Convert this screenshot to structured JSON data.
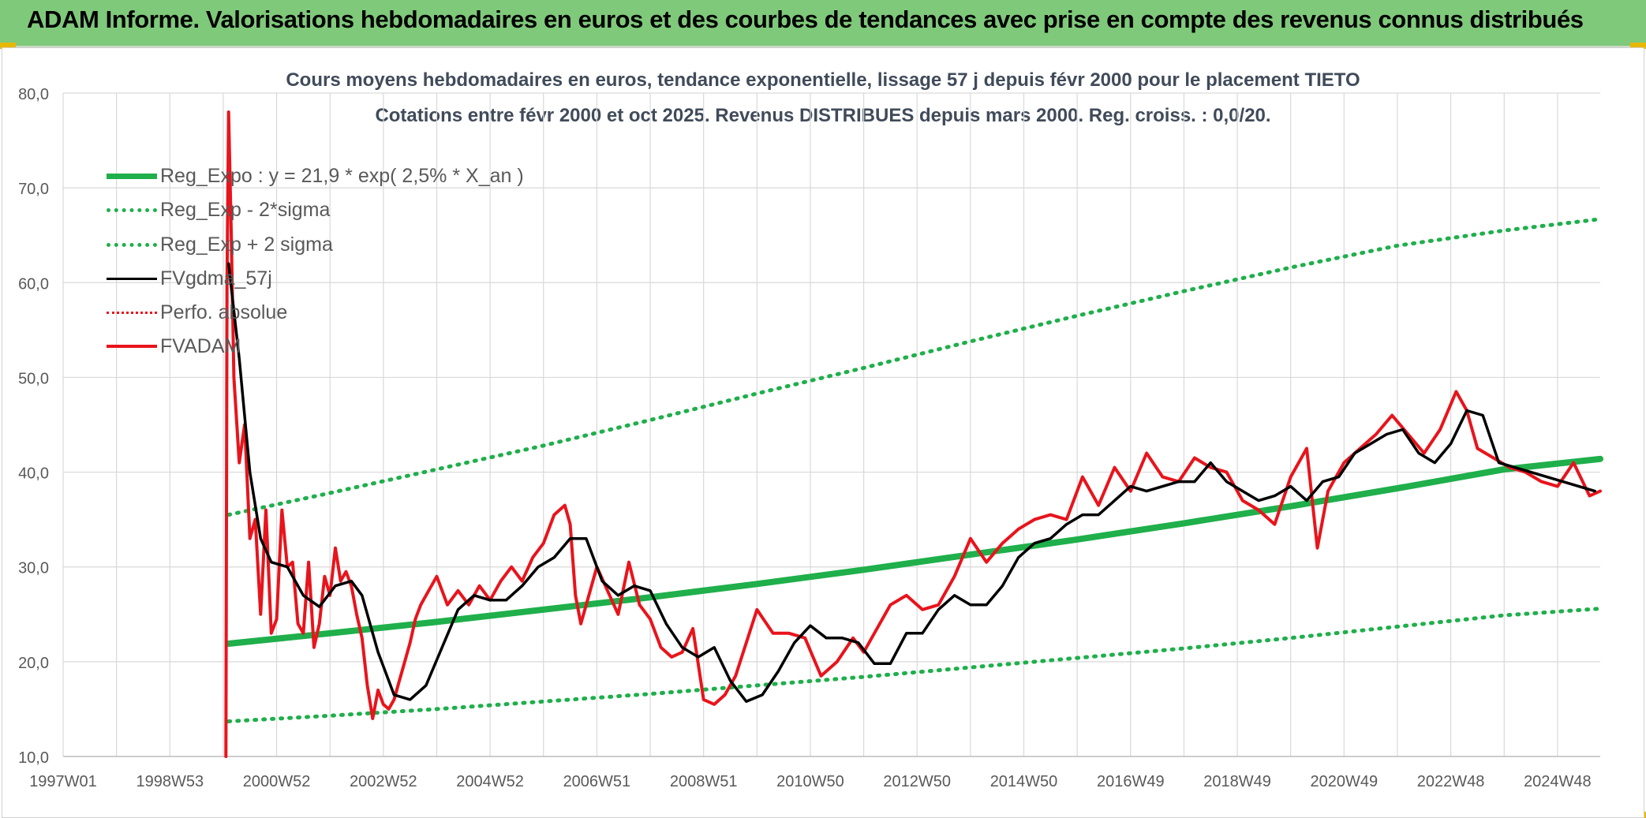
{
  "banner": {
    "title": "ADAM Informe. Valorisations hebdomadaires en euros et des courbes de tendances avec prise en compte des revenus connus distribués"
  },
  "chart_data": {
    "type": "line",
    "title": "Cours moyens hebdomadaires en euros, tendance exponentielle, lissage 57 j depuis févr 2000 pour le placement TIETO",
    "subtitle": "Cotations entre févr 2000 et oct 2025. Revenus DISTRIBUES depuis mars 2000. Reg. croiss. : 0,0/20.",
    "xlabel": "",
    "ylabel": "",
    "xlim": [
      1997.0,
      2025.8
    ],
    "ylim": [
      10,
      80
    ],
    "y_ticks": [
      "10,0",
      "20,0",
      "30,0",
      "40,0",
      "50,0",
      "60,0",
      "70,0",
      "80,0"
    ],
    "x_ticks": [
      {
        "label": "1997W01",
        "x": 1997.0
      },
      {
        "label": "1998W53",
        "x": 1999.0
      },
      {
        "label": "2000W52",
        "x": 2001.0
      },
      {
        "label": "2002W52",
        "x": 2003.0
      },
      {
        "label": "2004W52",
        "x": 2005.0
      },
      {
        "label": "2006W51",
        "x": 2007.0
      },
      {
        "label": "2008W51",
        "x": 2009.0
      },
      {
        "label": "2010W50",
        "x": 2011.0
      },
      {
        "label": "2012W50",
        "x": 2013.0
      },
      {
        "label": "2014W50",
        "x": 2015.0
      },
      {
        "label": "2016W49",
        "x": 2017.0
      },
      {
        "label": "2018W49",
        "x": 2019.0
      },
      {
        "label": "2020W49",
        "x": 2021.0
      },
      {
        "label": "2022W48",
        "x": 2023.0
      },
      {
        "label": "2024W48",
        "x": 2025.0
      }
    ],
    "grid": true,
    "legend_position": "top-left",
    "colors": {
      "green": "#1faf4b",
      "green_dotted": "#1faf4b",
      "black": "#000000",
      "red": "#e8141c",
      "red_dotted": "#e8141c",
      "grid": "#d9d9d9",
      "tick_text": "#595959"
    },
    "series": [
      {
        "name": "Reg_Expo : y = 21,9 * exp( 2,5% *  X_an )",
        "style": "solid-thick-green",
        "x": [
          2000.1,
          2002.0,
          2004.0,
          2006.0,
          2008.0,
          2010.0,
          2012.0,
          2014.0,
          2016.0,
          2018.0,
          2020.0,
          2022.0,
          2024.0,
          2025.8
        ],
        "y": [
          21.9,
          23.0,
          24.2,
          25.5,
          26.8,
          28.2,
          29.7,
          31.3,
          32.9,
          34.6,
          36.4,
          38.3,
          40.3,
          41.4
        ]
      },
      {
        "name": "Reg_Exp - 2*sigma",
        "style": "dotted-green",
        "x": [
          2000.1,
          2002.0,
          2004.0,
          2006.0,
          2008.0,
          2010.0,
          2012.0,
          2014.0,
          2016.0,
          2018.0,
          2020.0,
          2022.0,
          2024.0,
          2025.8
        ],
        "y": [
          13.7,
          14.3,
          15.0,
          15.8,
          16.6,
          17.5,
          18.4,
          19.4,
          20.4,
          21.4,
          22.5,
          23.7,
          24.9,
          25.6
        ]
      },
      {
        "name": "Reg_Exp + 2 sigma",
        "style": "dotted-green",
        "x": [
          2000.1,
          2002.0,
          2004.0,
          2006.0,
          2008.0,
          2010.0,
          2012.0,
          2014.0,
          2016.0,
          2018.0,
          2020.0,
          2022.0,
          2024.0,
          2025.8
        ],
        "y": [
          35.5,
          37.8,
          40.3,
          42.8,
          45.5,
          48.3,
          51.0,
          53.8,
          56.5,
          59.1,
          61.6,
          63.9,
          65.5,
          66.7
        ]
      },
      {
        "name": "FVgdma_57j",
        "style": "solid-thin-black",
        "x": [
          2000.1,
          2000.3,
          2000.5,
          2000.7,
          2000.9,
          2001.2,
          2001.5,
          2001.8,
          2002.1,
          2002.4,
          2002.6,
          2002.9,
          2003.2,
          2003.5,
          2003.8,
          2004.1,
          2004.4,
          2004.7,
          2005.0,
          2005.3,
          2005.6,
          2005.9,
          2006.2,
          2006.5,
          2006.8,
          2007.1,
          2007.4,
          2007.7,
          2008.0,
          2008.3,
          2008.6,
          2008.9,
          2009.2,
          2009.5,
          2009.8,
          2010.1,
          2010.4,
          2010.7,
          2011.0,
          2011.3,
          2011.6,
          2011.9,
          2012.2,
          2012.5,
          2012.8,
          2013.1,
          2013.4,
          2013.7,
          2014.0,
          2014.3,
          2014.6,
          2014.9,
          2015.2,
          2015.5,
          2015.8,
          2016.1,
          2016.4,
          2016.7,
          2017.0,
          2017.3,
          2017.6,
          2017.9,
          2018.2,
          2018.5,
          2018.8,
          2019.1,
          2019.4,
          2019.7,
          2020.0,
          2020.3,
          2020.6,
          2020.9,
          2021.2,
          2021.5,
          2021.8,
          2022.1,
          2022.4,
          2022.7,
          2023.0,
          2023.3,
          2023.6,
          2023.9,
          2024.2,
          2024.5,
          2024.8,
          2025.1,
          2025.4,
          2025.7
        ],
        "y": [
          62.0,
          52.0,
          40.0,
          33.0,
          30.5,
          30.0,
          27.0,
          25.8,
          28.0,
          28.5,
          27.0,
          21.0,
          16.5,
          16.0,
          17.5,
          21.5,
          25.5,
          27.0,
          26.5,
          26.5,
          28.0,
          30.0,
          31.0,
          33.0,
          33.0,
          28.5,
          27.0,
          28.0,
          27.5,
          24.0,
          21.5,
          20.5,
          21.5,
          18.0,
          15.8,
          16.5,
          19.0,
          22.0,
          23.8,
          22.5,
          22.5,
          22.0,
          19.8,
          19.8,
          23.0,
          23.0,
          25.5,
          27.0,
          26.0,
          26.0,
          28.0,
          31.0,
          32.5,
          33.0,
          34.5,
          35.5,
          35.5,
          37.0,
          38.5,
          38.0,
          38.5,
          39.0,
          39.0,
          41.0,
          39.0,
          38.0,
          37.0,
          37.5,
          38.5,
          37.0,
          39.0,
          39.5,
          42.0,
          43.0,
          44.0,
          44.5,
          42.0,
          41.0,
          43.0,
          46.5,
          46.0,
          41.0,
          40.5,
          40.0,
          39.5,
          39.0,
          38.5,
          38.0
        ]
      },
      {
        "name": "Perfo. absolue",
        "style": "dotted-red",
        "x": [],
        "y": []
      },
      {
        "name": "FVADAM",
        "style": "solid-thick-red",
        "x": [
          2000.05,
          2000.07,
          2000.1,
          2000.15,
          2000.2,
          2000.3,
          2000.4,
          2000.5,
          2000.6,
          2000.7,
          2000.8,
          2000.9,
          2001.0,
          2001.1,
          2001.2,
          2001.3,
          2001.4,
          2001.5,
          2001.6,
          2001.7,
          2001.8,
          2001.9,
          2002.0,
          2002.1,
          2002.2,
          2002.3,
          2002.4,
          2002.5,
          2002.6,
          2002.7,
          2002.8,
          2002.9,
          2003.0,
          2003.1,
          2003.2,
          2003.3,
          2003.4,
          2003.5,
          2003.6,
          2003.7,
          2003.8,
          2004.0,
          2004.2,
          2004.4,
          2004.6,
          2004.8,
          2005.0,
          2005.2,
          2005.4,
          2005.6,
          2005.8,
          2006.0,
          2006.2,
          2006.4,
          2006.5,
          2006.6,
          2006.7,
          2006.8,
          2007.0,
          2007.2,
          2007.4,
          2007.6,
          2007.8,
          2008.0,
          2008.2,
          2008.4,
          2008.6,
          2008.8,
          2009.0,
          2009.2,
          2009.4,
          2009.6,
          2009.8,
          2010.0,
          2010.3,
          2010.6,
          2010.9,
          2011.2,
          2011.5,
          2011.8,
          2012.0,
          2012.2,
          2012.5,
          2012.8,
          2013.1,
          2013.4,
          2013.7,
          2014.0,
          2014.3,
          2014.6,
          2014.9,
          2015.2,
          2015.5,
          2015.8,
          2016.1,
          2016.4,
          2016.7,
          2017.0,
          2017.3,
          2017.6,
          2017.9,
          2018.2,
          2018.5,
          2018.8,
          2019.1,
          2019.4,
          2019.7,
          2020.0,
          2020.3,
          2020.5,
          2020.7,
          2021.0,
          2021.3,
          2021.6,
          2021.9,
          2022.2,
          2022.5,
          2022.8,
          2023.1,
          2023.3,
          2023.5,
          2023.8,
          2024.1,
          2024.4,
          2024.7,
          2025.0,
          2025.3,
          2025.6,
          2025.8
        ],
        "y": [
          10.0,
          60.0,
          78.0,
          65.0,
          50.0,
          41.0,
          45.0,
          33.0,
          35.0,
          25.0,
          36.0,
          23.0,
          24.5,
          36.0,
          30.0,
          30.5,
          24.0,
          23.0,
          30.5,
          21.5,
          24.0,
          29.0,
          27.0,
          32.0,
          28.5,
          29.5,
          28.0,
          25.0,
          22.5,
          17.5,
          14.0,
          17.0,
          15.5,
          15.0,
          16.0,
          18.0,
          20.0,
          22.0,
          24.5,
          26.0,
          27.0,
          29.0,
          26.0,
          27.5,
          26.0,
          28.0,
          26.5,
          28.5,
          30.0,
          28.5,
          31.0,
          32.5,
          35.5,
          36.5,
          34.5,
          27.0,
          24.0,
          26.0,
          30.0,
          27.5,
          25.0,
          30.5,
          26.0,
          24.5,
          21.5,
          20.5,
          21.0,
          23.5,
          16.0,
          15.5,
          16.5,
          18.5,
          22.0,
          25.5,
          23.0,
          23.0,
          22.5,
          18.5,
          20.0,
          22.5,
          21.0,
          23.0,
          26.0,
          27.0,
          25.5,
          26.0,
          29.0,
          33.0,
          30.5,
          32.5,
          34.0,
          35.0,
          35.5,
          35.0,
          39.5,
          36.5,
          40.5,
          38.0,
          42.0,
          39.5,
          39.0,
          41.5,
          40.5,
          40.0,
          37.0,
          36.0,
          34.5,
          39.5,
          42.5,
          32.0,
          38.0,
          41.0,
          42.5,
          44.0,
          46.0,
          44.0,
          42.0,
          44.5,
          48.5,
          46.5,
          42.5,
          41.5,
          40.5,
          40.0,
          39.0,
          38.5,
          41.0,
          37.5,
          38.0
        ]
      }
    ]
  }
}
